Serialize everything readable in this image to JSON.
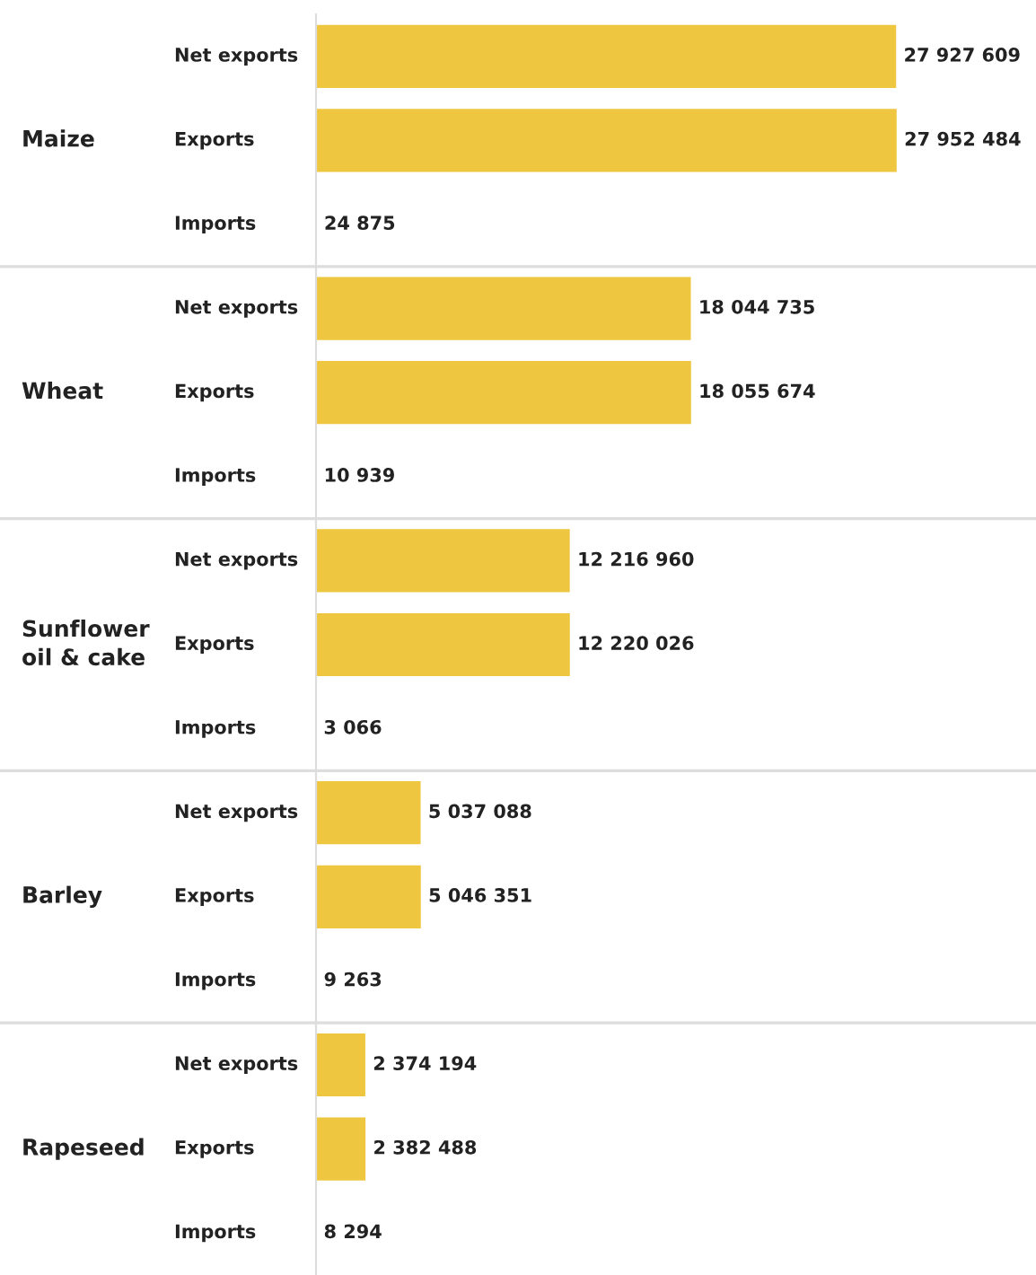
{
  "chart_data": {
    "type": "bar",
    "orientation": "horizontal",
    "categories": [
      "Net exports",
      "Exports",
      "Imports",
      "Net exports",
      "Exports",
      "Imports",
      "Net exports",
      "Exports",
      "Imports",
      "Net exports",
      "Exports",
      "Imports",
      "Net exports",
      "Exports",
      "Imports"
    ],
    "values": [
      27927609,
      27952484,
      24875,
      18044735,
      18055674,
      10939,
      12216960,
      12220026,
      3066,
      5037088,
      5046351,
      9263,
      2374194,
      2382488,
      8294
    ],
    "value_labels": [
      "27 927 609",
      "27 952 484",
      "24 875",
      "18 044 735",
      "18 055 674",
      "10 939",
      "12 216 960",
      "12 220 026",
      "3 066",
      "5 037 088",
      "5 046 351",
      "9 263",
      "2 374 194",
      "2 382 488",
      "8 294"
    ],
    "color": "#eec640",
    "annotations": [
      "Maize",
      "Wheat",
      "Sunflower\noil & cake",
      "Barley",
      "Rapeseed"
    ],
    "legend": false
  }
}
